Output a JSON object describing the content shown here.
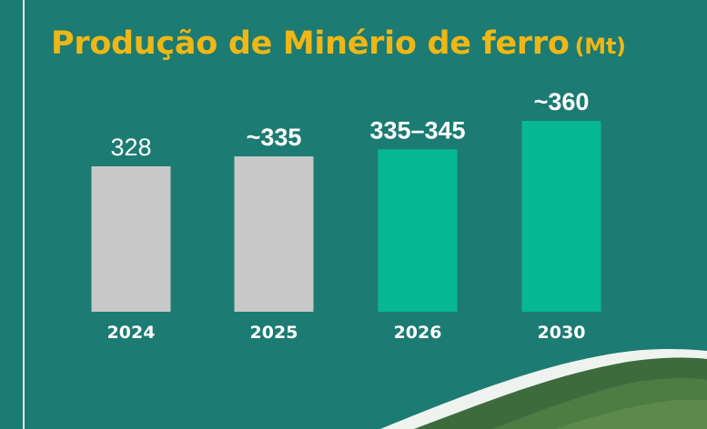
{
  "chart_data": {
    "type": "bar",
    "title": "Produção de Minério de ferro",
    "title_unit": "(Mt)",
    "categories": [
      "2024",
      "2025",
      "2026",
      "2030"
    ],
    "values": [
      328,
      335,
      340,
      360
    ],
    "value_labels": [
      "328",
      "~335",
      "335–345",
      "~360"
    ],
    "value_label_bold": [
      false,
      true,
      true,
      true
    ],
    "bar_colors": [
      "#c8c8c8",
      "#c8c8c8",
      "#08b894",
      "#08b894"
    ],
    "ylim": [
      0,
      365
    ],
    "grid": false,
    "legend": "none"
  },
  "colors": {
    "background": "#1c7b72",
    "title": "#efb716",
    "text": "#ffffff",
    "historic_bar": "#c8c8c8",
    "projected_bar": "#08b894",
    "border": "#e8f1ef"
  }
}
